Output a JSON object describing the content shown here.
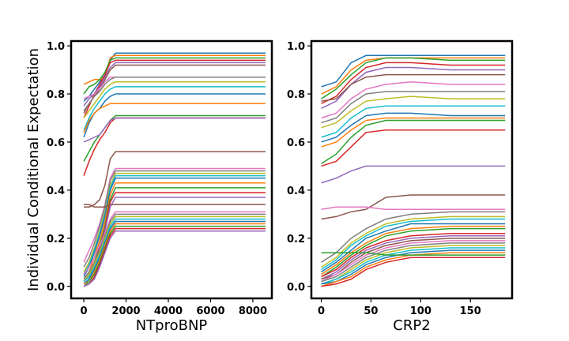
{
  "chart_data": [
    {
      "type": "line",
      "title": "",
      "xlabel": "NTproBNP",
      "ylabel": "Individual Conditional Expectation",
      "xlim": [
        -600,
        8900
      ],
      "ylim": [
        -0.05,
        1.02
      ],
      "xticks": [
        0,
        2000,
        4000,
        6000,
        8000
      ],
      "xtick_labels": [
        "0",
        "2000",
        "4000",
        "6000",
        "8000"
      ],
      "yticks": [
        0.0,
        0.2,
        0.4,
        0.6,
        0.8,
        1.0
      ],
      "ytick_labels": [
        "0.0",
        "0.2",
        "0.4",
        "0.6",
        "0.8",
        "1.0"
      ],
      "grid": false,
      "legend": "none",
      "x": [
        0,
        250,
        500,
        750,
        1000,
        1250,
        1500,
        1750,
        2000,
        8600
      ],
      "series": [
        {
          "values": [
            0.77,
            0.79,
            0.82,
            0.85,
            0.88,
            0.94,
            0.97,
            0.97,
            0.97,
            0.97
          ]
        },
        {
          "values": [
            0.84,
            0.85,
            0.86,
            0.86,
            0.87,
            0.95,
            0.96,
            0.96,
            0.96,
            0.96
          ]
        },
        {
          "values": [
            0.8,
            0.83,
            0.84,
            0.86,
            0.89,
            0.94,
            0.95,
            0.95,
            0.95,
            0.95
          ]
        },
        {
          "values": [
            0.7,
            0.75,
            0.8,
            0.84,
            0.88,
            0.93,
            0.94,
            0.94,
            0.94,
            0.94
          ]
        },
        {
          "values": [
            0.75,
            0.78,
            0.8,
            0.83,
            0.87,
            0.91,
            0.93,
            0.93,
            0.93,
            0.93
          ]
        },
        {
          "values": [
            0.72,
            0.76,
            0.79,
            0.82,
            0.86,
            0.9,
            0.92,
            0.92,
            0.92,
            0.92
          ]
        },
        {
          "values": [
            0.78,
            0.79,
            0.8,
            0.82,
            0.85,
            0.87,
            0.87,
            0.87,
            0.87,
            0.87
          ]
        },
        {
          "values": [
            0.73,
            0.76,
            0.79,
            0.81,
            0.84,
            0.86,
            0.87,
            0.87,
            0.87,
            0.87
          ]
        },
        {
          "values": [
            0.7,
            0.73,
            0.76,
            0.79,
            0.82,
            0.84,
            0.85,
            0.85,
            0.85,
            0.85
          ]
        },
        {
          "values": [
            0.65,
            0.7,
            0.74,
            0.77,
            0.8,
            0.82,
            0.83,
            0.83,
            0.83,
            0.83
          ]
        },
        {
          "values": [
            0.62,
            0.68,
            0.72,
            0.74,
            0.77,
            0.79,
            0.8,
            0.8,
            0.8,
            0.8
          ]
        },
        {
          "values": [
            0.64,
            0.69,
            0.72,
            0.74,
            0.75,
            0.76,
            0.76,
            0.76,
            0.76,
            0.76
          ]
        },
        {
          "values": [
            0.52,
            0.56,
            0.6,
            0.63,
            0.66,
            0.69,
            0.71,
            0.71,
            0.71,
            0.71
          ]
        },
        {
          "values": [
            0.46,
            0.52,
            0.57,
            0.61,
            0.64,
            0.68,
            0.7,
            0.7,
            0.7,
            0.7
          ]
        },
        {
          "values": [
            0.6,
            0.61,
            0.62,
            0.63,
            0.66,
            0.69,
            0.7,
            0.7,
            0.7,
            0.7
          ]
        },
        {
          "values": [
            0.33,
            0.33,
            0.34,
            0.36,
            0.42,
            0.53,
            0.56,
            0.56,
            0.56,
            0.56
          ]
        },
        {
          "values": [
            0.1,
            0.15,
            0.2,
            0.26,
            0.34,
            0.45,
            0.49,
            0.49,
            0.49,
            0.49
          ]
        },
        {
          "values": [
            0.08,
            0.12,
            0.18,
            0.25,
            0.33,
            0.44,
            0.48,
            0.48,
            0.48,
            0.48
          ]
        },
        {
          "values": [
            0.06,
            0.1,
            0.16,
            0.23,
            0.31,
            0.42,
            0.47,
            0.47,
            0.47,
            0.47
          ]
        },
        {
          "values": [
            0.05,
            0.09,
            0.15,
            0.22,
            0.3,
            0.41,
            0.46,
            0.46,
            0.46,
            0.46
          ]
        },
        {
          "values": [
            0.04,
            0.08,
            0.14,
            0.21,
            0.29,
            0.4,
            0.45,
            0.45,
            0.45,
            0.45
          ]
        },
        {
          "values": [
            0.03,
            0.06,
            0.12,
            0.19,
            0.27,
            0.38,
            0.43,
            0.43,
            0.43,
            0.43
          ]
        },
        {
          "values": [
            0.02,
            0.05,
            0.1,
            0.17,
            0.25,
            0.36,
            0.41,
            0.41,
            0.41,
            0.41
          ]
        },
        {
          "values": [
            0.02,
            0.04,
            0.09,
            0.16,
            0.24,
            0.35,
            0.39,
            0.39,
            0.39,
            0.39
          ]
        },
        {
          "values": [
            0.01,
            0.03,
            0.08,
            0.15,
            0.23,
            0.33,
            0.37,
            0.37,
            0.37,
            0.37
          ]
        },
        {
          "values": [
            0.34,
            0.34,
            0.33,
            0.33,
            0.33,
            0.34,
            0.34,
            0.34,
            0.34,
            0.34
          ]
        },
        {
          "values": [
            0.05,
            0.08,
            0.12,
            0.17,
            0.22,
            0.28,
            0.31,
            0.31,
            0.31,
            0.31
          ]
        },
        {
          "values": [
            0.03,
            0.06,
            0.1,
            0.15,
            0.21,
            0.27,
            0.3,
            0.3,
            0.3,
            0.3
          ]
        },
        {
          "values": [
            0.02,
            0.05,
            0.09,
            0.14,
            0.2,
            0.26,
            0.29,
            0.29,
            0.29,
            0.29
          ]
        },
        {
          "values": [
            0.02,
            0.04,
            0.08,
            0.13,
            0.19,
            0.25,
            0.28,
            0.28,
            0.28,
            0.28
          ]
        },
        {
          "values": [
            0.01,
            0.03,
            0.07,
            0.12,
            0.18,
            0.24,
            0.27,
            0.27,
            0.27,
            0.27
          ]
        },
        {
          "values": [
            0.01,
            0.02,
            0.06,
            0.11,
            0.17,
            0.23,
            0.26,
            0.26,
            0.26,
            0.26
          ]
        },
        {
          "values": [
            0.0,
            0.02,
            0.05,
            0.1,
            0.16,
            0.22,
            0.25,
            0.25,
            0.25,
            0.25
          ]
        },
        {
          "values": [
            0.0,
            0.01,
            0.04,
            0.09,
            0.15,
            0.21,
            0.24,
            0.24,
            0.24,
            0.24
          ]
        },
        {
          "values": [
            0.0,
            0.01,
            0.03,
            0.08,
            0.14,
            0.2,
            0.23,
            0.23,
            0.23,
            0.23
          ]
        }
      ]
    },
    {
      "type": "line",
      "title": "",
      "xlabel": "CRP2",
      "ylabel": "",
      "xlim": [
        -10,
        192
      ],
      "ylim": [
        -0.05,
        1.02
      ],
      "xticks": [
        0,
        50,
        100,
        150
      ],
      "xtick_labels": [
        "0",
        "50",
        "100",
        "150"
      ],
      "yticks": [
        0.0,
        0.2,
        0.4,
        0.6,
        0.8,
        1.0
      ],
      "ytick_labels": [
        "0.0",
        "0.2",
        "0.4",
        "0.6",
        "0.8",
        "1.0"
      ],
      "grid": false,
      "legend": "none",
      "x": [
        0,
        15,
        30,
        45,
        65,
        90,
        130,
        185
      ],
      "series": [
        {
          "values": [
            0.83,
            0.85,
            0.93,
            0.96,
            0.96,
            0.96,
            0.96,
            0.96
          ]
        },
        {
          "values": [
            0.8,
            0.83,
            0.9,
            0.94,
            0.95,
            0.95,
            0.95,
            0.95
          ]
        },
        {
          "values": [
            0.78,
            0.82,
            0.88,
            0.93,
            0.95,
            0.95,
            0.94,
            0.94
          ]
        },
        {
          "values": [
            0.76,
            0.79,
            0.86,
            0.91,
            0.93,
            0.93,
            0.92,
            0.92
          ]
        },
        {
          "values": [
            0.74,
            0.77,
            0.84,
            0.89,
            0.91,
            0.91,
            0.9,
            0.9
          ]
        },
        {
          "values": [
            0.77,
            0.78,
            0.84,
            0.87,
            0.88,
            0.88,
            0.88,
            0.88
          ]
        },
        {
          "values": [
            0.7,
            0.72,
            0.78,
            0.82,
            0.84,
            0.85,
            0.84,
            0.84
          ]
        },
        {
          "values": [
            0.68,
            0.7,
            0.76,
            0.8,
            0.81,
            0.81,
            0.81,
            0.81
          ]
        },
        {
          "values": [
            0.66,
            0.68,
            0.73,
            0.77,
            0.78,
            0.79,
            0.78,
            0.78
          ]
        },
        {
          "values": [
            0.62,
            0.64,
            0.7,
            0.74,
            0.75,
            0.75,
            0.75,
            0.75
          ]
        },
        {
          "values": [
            0.6,
            0.62,
            0.67,
            0.71,
            0.72,
            0.72,
            0.71,
            0.71
          ]
        },
        {
          "values": [
            0.58,
            0.6,
            0.65,
            0.69,
            0.7,
            0.7,
            0.7,
            0.7
          ]
        },
        {
          "values": [
            0.51,
            0.55,
            0.62,
            0.67,
            0.69,
            0.69,
            0.69,
            0.69
          ]
        },
        {
          "values": [
            0.5,
            0.52,
            0.58,
            0.64,
            0.65,
            0.65,
            0.65,
            0.65
          ]
        },
        {
          "values": [
            0.43,
            0.45,
            0.48,
            0.5,
            0.5,
            0.5,
            0.5,
            0.5
          ]
        },
        {
          "values": [
            0.28,
            0.29,
            0.31,
            0.32,
            0.37,
            0.38,
            0.38,
            0.38
          ]
        },
        {
          "values": [
            0.32,
            0.33,
            0.33,
            0.33,
            0.32,
            0.32,
            0.32,
            0.32
          ]
        },
        {
          "values": [
            0.1,
            0.14,
            0.2,
            0.24,
            0.28,
            0.3,
            0.31,
            0.31
          ]
        },
        {
          "values": [
            0.08,
            0.12,
            0.18,
            0.22,
            0.26,
            0.28,
            0.29,
            0.29
          ]
        },
        {
          "values": [
            0.07,
            0.11,
            0.17,
            0.21,
            0.25,
            0.27,
            0.28,
            0.28
          ]
        },
        {
          "values": [
            0.06,
            0.1,
            0.15,
            0.2,
            0.23,
            0.26,
            0.26,
            0.26
          ]
        },
        {
          "values": [
            0.05,
            0.09,
            0.14,
            0.18,
            0.22,
            0.24,
            0.25,
            0.25
          ]
        },
        {
          "values": [
            0.04,
            0.08,
            0.13,
            0.17,
            0.21,
            0.23,
            0.24,
            0.24
          ]
        },
        {
          "values": [
            0.04,
            0.07,
            0.12,
            0.16,
            0.19,
            0.21,
            0.22,
            0.22
          ]
        },
        {
          "values": [
            0.03,
            0.06,
            0.11,
            0.15,
            0.18,
            0.2,
            0.21,
            0.21
          ]
        },
        {
          "values": [
            0.03,
            0.05,
            0.1,
            0.14,
            0.17,
            0.19,
            0.2,
            0.2
          ]
        },
        {
          "values": [
            0.02,
            0.05,
            0.09,
            0.13,
            0.16,
            0.18,
            0.19,
            0.19
          ]
        },
        {
          "values": [
            0.02,
            0.04,
            0.08,
            0.12,
            0.15,
            0.17,
            0.18,
            0.18
          ]
        },
        {
          "values": [
            0.01,
            0.03,
            0.07,
            0.11,
            0.14,
            0.16,
            0.17,
            0.17
          ]
        },
        {
          "values": [
            0.01,
            0.03,
            0.06,
            0.1,
            0.13,
            0.15,
            0.16,
            0.16
          ]
        },
        {
          "values": [
            0.01,
            0.02,
            0.05,
            0.09,
            0.12,
            0.14,
            0.15,
            0.15
          ]
        },
        {
          "values": [
            0.0,
            0.02,
            0.04,
            0.08,
            0.11,
            0.13,
            0.14,
            0.14
          ]
        },
        {
          "values": [
            0.14,
            0.14,
            0.14,
            0.14,
            0.13,
            0.13,
            0.13,
            0.13
          ]
        },
        {
          "values": [
            0.0,
            0.01,
            0.03,
            0.07,
            0.1,
            0.12,
            0.12,
            0.12
          ]
        }
      ]
    }
  ],
  "palette": [
    "#1f77b4",
    "#ff7f0e",
    "#2ca02c",
    "#d62728",
    "#9467bd",
    "#8c564b",
    "#e377c2",
    "#7f7f7f",
    "#bcbd22",
    "#17becf"
  ]
}
